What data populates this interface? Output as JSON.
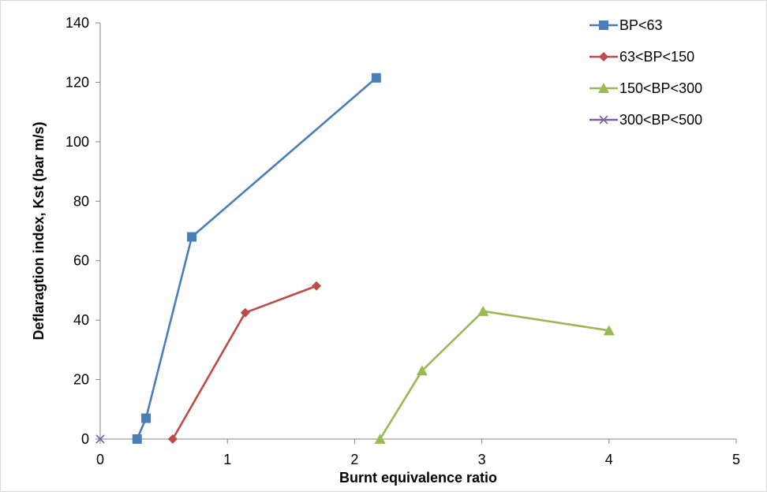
{
  "chart_data": {
    "type": "line",
    "title": "",
    "xlabel": "Burnt equivalence ratio",
    "ylabel": "Deflaragtion index, Kst (bar m/s)",
    "xlim": [
      0,
      5
    ],
    "ylim": [
      0,
      140
    ],
    "x_ticks": [
      0,
      1,
      2,
      3,
      4,
      5
    ],
    "y_ticks": [
      0,
      20,
      40,
      60,
      80,
      100,
      120,
      140
    ],
    "grid": false,
    "legend_position": "top-right",
    "series": [
      {
        "name": "BP<63",
        "color": "#4a7ebb",
        "marker": "square",
        "x": [
          0.29,
          0.36,
          0.72,
          2.17
        ],
        "y": [
          0,
          7,
          68,
          121.5
        ]
      },
      {
        "name": "63<BP<150",
        "color": "#be4b48",
        "marker": "diamond",
        "x": [
          0.57,
          1.14,
          1.7
        ],
        "y": [
          0,
          42.5,
          51.5
        ]
      },
      {
        "name": "150<BP<300",
        "color": "#98b954",
        "marker": "triangle",
        "x": [
          2.2,
          2.53,
          3.01,
          4.0
        ],
        "y": [
          0,
          23,
          43,
          36.5
        ]
      },
      {
        "name": "300<BP<500",
        "color": "#7d60a0",
        "marker": "x",
        "x": [
          0
        ],
        "y": [
          0
        ]
      }
    ]
  }
}
